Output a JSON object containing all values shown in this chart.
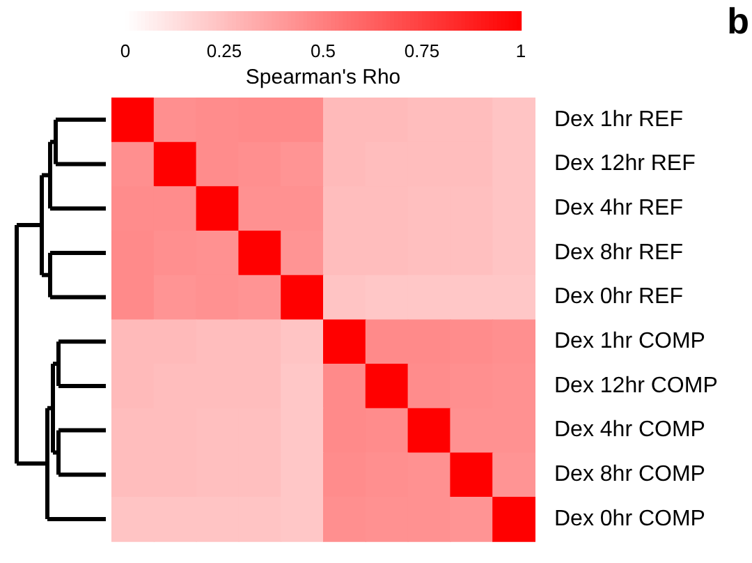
{
  "chart_data": {
    "type": "heatmap",
    "clabel": "Spearman's Rho",
    "color": "#ff0000",
    "clim": [
      0,
      1
    ],
    "cticks": [
      0,
      0.25,
      0.5,
      0.75,
      1
    ],
    "annotations": [
      "b"
    ],
    "categories": [
      null,
      null,
      null,
      null,
      null,
      null,
      null,
      null,
      null,
      null
    ],
    "y_categories": [
      "Dex 1hr REF",
      "Dex 12hr REF",
      "Dex 4hr REF",
      "Dex 8hr REF",
      "Dex 0hr REF",
      "Dex 1hr COMP",
      "Dex 12hr COMP",
      "Dex 4hr COMP",
      "Dex 8hr COMP",
      "Dex 0hr COMP"
    ],
    "cells": [
      [
        1,
        0.44,
        0.45,
        0.46,
        0.46,
        0.27,
        0.27,
        0.26,
        0.26,
        0.23
      ],
      [
        0.44,
        1,
        0.45,
        0.44,
        0.42,
        0.27,
        0.26,
        0.26,
        0.26,
        0.23
      ],
      [
        0.45,
        0.45,
        1,
        0.43,
        0.43,
        0.26,
        0.26,
        0.25,
        0.25,
        0.23
      ],
      [
        0.46,
        0.44,
        0.43,
        1,
        0.42,
        0.26,
        0.26,
        0.25,
        0.25,
        0.23
      ],
      [
        0.46,
        0.42,
        0.43,
        0.42,
        1,
        0.23,
        0.22,
        0.22,
        0.22,
        0.22
      ],
      [
        0.27,
        0.27,
        0.26,
        0.26,
        0.23,
        1,
        0.46,
        0.46,
        0.45,
        0.44
      ],
      [
        0.27,
        0.26,
        0.26,
        0.26,
        0.22,
        0.46,
        1,
        0.45,
        0.44,
        0.43
      ],
      [
        0.26,
        0.26,
        0.25,
        0.25,
        0.22,
        0.46,
        0.45,
        1,
        0.43,
        0.43
      ],
      [
        0.26,
        0.26,
        0.25,
        0.25,
        0.22,
        0.45,
        0.44,
        0.43,
        1,
        0.42
      ],
      [
        0.23,
        0.23,
        0.23,
        0.23,
        0.22,
        0.44,
        0.43,
        0.43,
        0.42,
        1
      ]
    ]
  }
}
